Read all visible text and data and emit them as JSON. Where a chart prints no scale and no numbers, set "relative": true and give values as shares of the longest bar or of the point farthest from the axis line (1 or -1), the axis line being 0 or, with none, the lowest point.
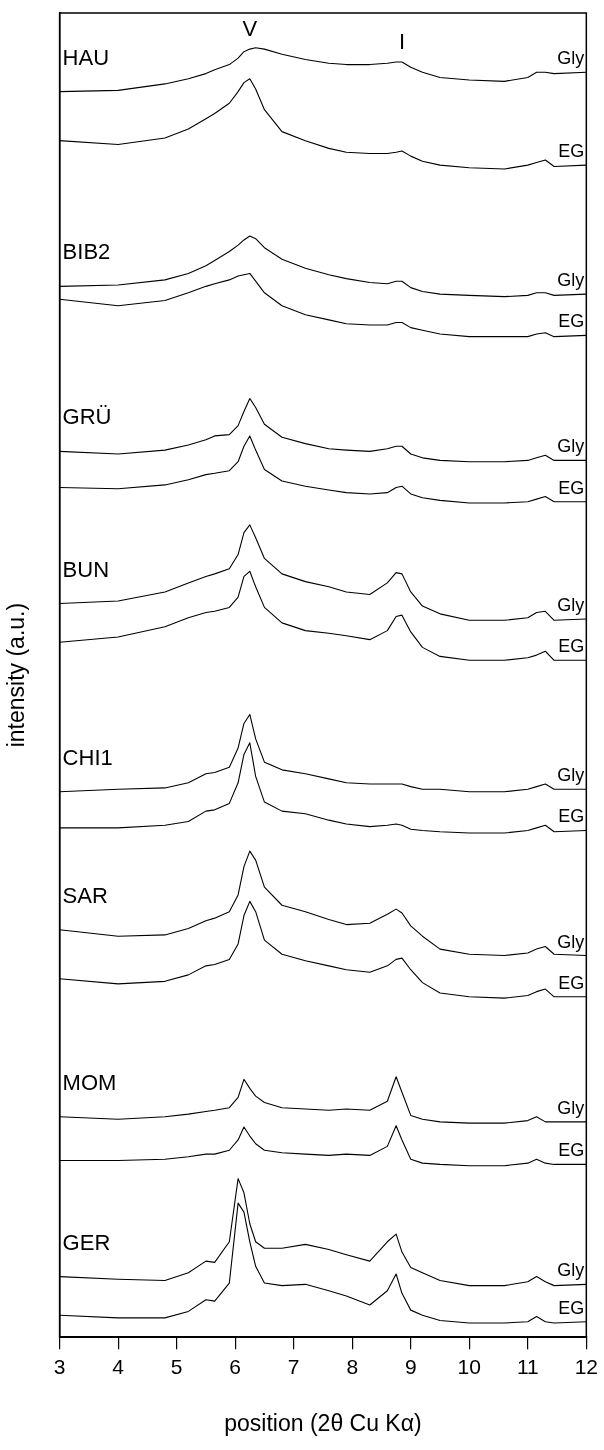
{
  "chart_data": {
    "type": "line",
    "relative": true,
    "xlabel": "position (2θ Cu Kα)",
    "ylabel": "intensity (a.u.)",
    "x": [
      3,
      4,
      4.8,
      5.2,
      5.5,
      5.65,
      5.9,
      6.05,
      6.15,
      6.25,
      6.35,
      6.5,
      6.8,
      7.2,
      7.6,
      7.9,
      8.3,
      8.6,
      8.75,
      8.85,
      9.0,
      9.2,
      9.5,
      10,
      10.6,
      11.0,
      11.15,
      11.3,
      11.45,
      12
    ],
    "xlim": [
      3,
      12
    ],
    "xticks": [
      3,
      4,
      5,
      6,
      7,
      8,
      9,
      10,
      11,
      12
    ],
    "legend": false,
    "series": [
      {
        "name": "Gly",
        "color": "#000000",
        "values": [
          0.966,
          0.967,
          0.972,
          0.976,
          0.98,
          0.983,
          0.987,
          0.992,
          0.997,
          0.999,
          1.0,
          0.999,
          0.995,
          0.991,
          0.988,
          0.987,
          0.987,
          0.988,
          0.989,
          0.989,
          0.985,
          0.981,
          0.977,
          0.975,
          0.974,
          0.977,
          0.981,
          0.981,
          0.98,
          0.981
        ]
      },
      {
        "name": "EG",
        "color": "#000000",
        "values": [
          0.928,
          0.925,
          0.93,
          0.937,
          0.945,
          0.949,
          0.957,
          0.966,
          0.973,
          0.976,
          0.968,
          0.952,
          0.935,
          0.928,
          0.922,
          0.919,
          0.918,
          0.918,
          0.919,
          0.92,
          0.916,
          0.912,
          0.909,
          0.907,
          0.906,
          0.909,
          0.911,
          0.913,
          0.908,
          0.909
        ]
      },
      {
        "name": "Gly",
        "color": "#000000",
        "values": [
          0.815,
          0.816,
          0.82,
          0.825,
          0.831,
          0.835,
          0.842,
          0.847,
          0.851,
          0.854,
          0.852,
          0.845,
          0.836,
          0.829,
          0.824,
          0.821,
          0.818,
          0.817,
          0.819,
          0.819,
          0.814,
          0.811,
          0.809,
          0.808,
          0.807,
          0.808,
          0.81,
          0.81,
          0.808,
          0.809
        ]
      },
      {
        "name": "EG",
        "color": "#000000",
        "values": [
          0.805,
          0.8,
          0.804,
          0.81,
          0.815,
          0.817,
          0.82,
          0.823,
          0.824,
          0.825,
          0.819,
          0.81,
          0.8,
          0.793,
          0.789,
          0.786,
          0.785,
          0.785,
          0.787,
          0.787,
          0.783,
          0.781,
          0.778,
          0.776,
          0.776,
          0.776,
          0.778,
          0.779,
          0.776,
          0.777
        ]
      },
      {
        "name": "Gly",
        "color": "#000000",
        "values": [
          0.687,
          0.685,
          0.688,
          0.692,
          0.696,
          0.699,
          0.7,
          0.707,
          0.718,
          0.728,
          0.721,
          0.708,
          0.698,
          0.693,
          0.689,
          0.688,
          0.687,
          0.689,
          0.691,
          0.691,
          0.685,
          0.682,
          0.68,
          0.679,
          0.679,
          0.68,
          0.682,
          0.684,
          0.68,
          0.68
        ]
      },
      {
        "name": "EG",
        "color": "#000000",
        "values": [
          0.659,
          0.658,
          0.661,
          0.665,
          0.669,
          0.67,
          0.672,
          0.679,
          0.691,
          0.699,
          0.688,
          0.673,
          0.664,
          0.66,
          0.657,
          0.655,
          0.654,
          0.655,
          0.659,
          0.66,
          0.654,
          0.651,
          0.649,
          0.647,
          0.647,
          0.648,
          0.65,
          0.652,
          0.648,
          0.648
        ]
      },
      {
        "name": "Gly",
        "color": "#000000",
        "values": [
          0.569,
          0.571,
          0.578,
          0.585,
          0.59,
          0.592,
          0.596,
          0.607,
          0.624,
          0.63,
          0.62,
          0.604,
          0.592,
          0.586,
          0.582,
          0.578,
          0.576,
          0.585,
          0.593,
          0.592,
          0.578,
          0.567,
          0.561,
          0.556,
          0.556,
          0.558,
          0.562,
          0.563,
          0.556,
          0.557
        ]
      },
      {
        "name": "EG",
        "color": "#000000",
        "values": [
          0.539,
          0.543,
          0.551,
          0.558,
          0.562,
          0.563,
          0.566,
          0.574,
          0.59,
          0.594,
          0.582,
          0.566,
          0.554,
          0.548,
          0.546,
          0.544,
          0.541,
          0.548,
          0.559,
          0.56,
          0.547,
          0.535,
          0.528,
          0.525,
          0.525,
          0.527,
          0.529,
          0.532,
          0.525,
          0.525
        ]
      },
      {
        "name": "Gly",
        "color": "#000000",
        "values": [
          0.423,
          0.425,
          0.426,
          0.43,
          0.437,
          0.438,
          0.442,
          0.457,
          0.476,
          0.483,
          0.464,
          0.446,
          0.44,
          0.437,
          0.433,
          0.43,
          0.429,
          0.429,
          0.429,
          0.429,
          0.427,
          0.425,
          0.425,
          0.423,
          0.423,
          0.425,
          0.427,
          0.429,
          0.425,
          0.425
        ]
      },
      {
        "name": "EG",
        "color": "#000000",
        "values": [
          0.395,
          0.395,
          0.397,
          0.4,
          0.408,
          0.409,
          0.414,
          0.43,
          0.452,
          0.461,
          0.435,
          0.415,
          0.408,
          0.406,
          0.401,
          0.398,
          0.396,
          0.397,
          0.398,
          0.397,
          0.394,
          0.393,
          0.392,
          0.391,
          0.391,
          0.393,
          0.395,
          0.397,
          0.392,
          0.393
        ]
      },
      {
        "name": "Gly",
        "color": "#000000",
        "values": [
          0.316,
          0.311,
          0.312,
          0.317,
          0.323,
          0.325,
          0.33,
          0.343,
          0.365,
          0.377,
          0.37,
          0.349,
          0.335,
          0.33,
          0.324,
          0.32,
          0.321,
          0.328,
          0.332,
          0.329,
          0.319,
          0.311,
          0.301,
          0.297,
          0.296,
          0.298,
          0.301,
          0.303,
          0.297,
          0.296
        ]
      },
      {
        "name": "EG",
        "color": "#000000",
        "values": [
          0.278,
          0.274,
          0.276,
          0.281,
          0.288,
          0.289,
          0.293,
          0.305,
          0.327,
          0.338,
          0.33,
          0.308,
          0.297,
          0.292,
          0.288,
          0.285,
          0.283,
          0.288,
          0.293,
          0.294,
          0.285,
          0.275,
          0.267,
          0.264,
          0.263,
          0.265,
          0.268,
          0.27,
          0.264,
          0.264
        ]
      },
      {
        "name": "Gly",
        "color": "#000000",
        "values": [
          0.171,
          0.169,
          0.171,
          0.173,
          0.175,
          0.176,
          0.178,
          0.186,
          0.2,
          0.193,
          0.187,
          0.182,
          0.178,
          0.177,
          0.176,
          0.177,
          0.176,
          0.183,
          0.202,
          0.19,
          0.172,
          0.169,
          0.167,
          0.166,
          0.166,
          0.168,
          0.171,
          0.167,
          0.167,
          0.167
        ]
      },
      {
        "name": "EG",
        "color": "#000000",
        "values": [
          0.137,
          0.137,
          0.138,
          0.14,
          0.142,
          0.142,
          0.145,
          0.153,
          0.163,
          0.156,
          0.15,
          0.145,
          0.143,
          0.142,
          0.141,
          0.142,
          0.141,
          0.148,
          0.164,
          0.153,
          0.138,
          0.135,
          0.134,
          0.133,
          0.133,
          0.135,
          0.138,
          0.135,
          0.134,
          0.134
        ]
      },
      {
        "name": "Gly",
        "color": "#000000",
        "values": [
          0.047,
          0.045,
          0.044,
          0.05,
          0.059,
          0.058,
          0.074,
          0.123,
          0.112,
          0.088,
          0.074,
          0.069,
          0.069,
          0.072,
          0.068,
          0.064,
          0.059,
          0.074,
          0.08,
          0.066,
          0.054,
          0.05,
          0.044,
          0.04,
          0.04,
          0.043,
          0.047,
          0.043,
          0.04,
          0.041
        ]
      },
      {
        "name": "EG",
        "color": "#000000",
        "values": [
          0.017,
          0.015,
          0.015,
          0.02,
          0.029,
          0.028,
          0.042,
          0.104,
          0.097,
          0.074,
          0.055,
          0.042,
          0.04,
          0.041,
          0.036,
          0.032,
          0.025,
          0.036,
          0.049,
          0.034,
          0.021,
          0.017,
          0.013,
          0.011,
          0.011,
          0.012,
          0.016,
          0.012,
          0.011,
          0.012
        ]
      }
    ],
    "annotations": [
      "HAU",
      "BIB2",
      "GRÜ",
      "BUN",
      "CHI1",
      "SAR",
      "MOM",
      "GER",
      {
        "text": "V",
        "x": 6.25,
        "y": 0.999
      },
      {
        "text": "I",
        "x": 8.85,
        "y": 0.989
      }
    ]
  }
}
